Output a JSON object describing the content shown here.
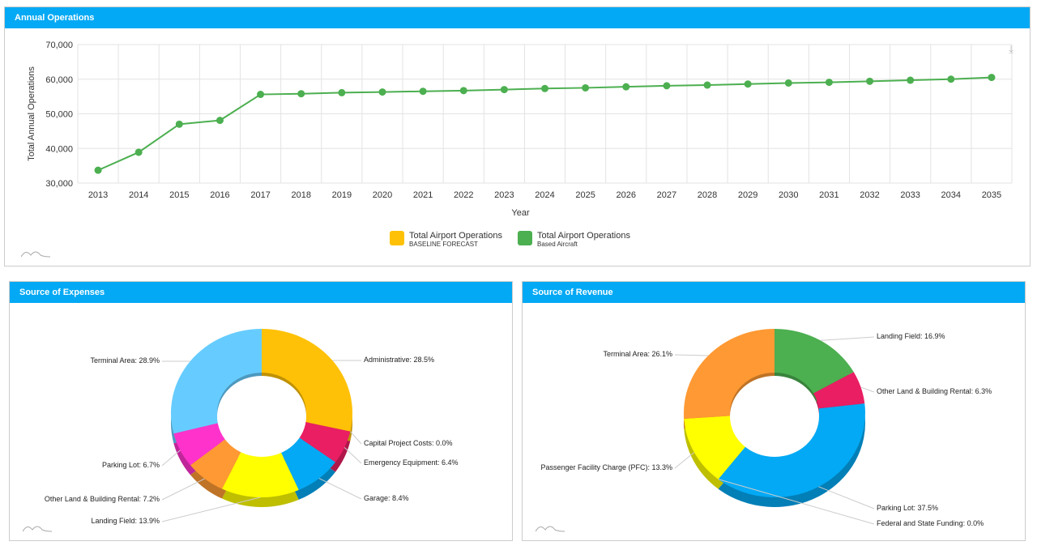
{
  "panels": {
    "operations": "Annual Operations",
    "expenses": "Source of Expenses",
    "revenue": "Source of Revenue"
  },
  "chart_data": [
    {
      "type": "line",
      "title": "Annual Operations",
      "xlabel": "Year",
      "ylabel": "Total Annual Operations",
      "ylim": [
        30000,
        70000
      ],
      "yticks": [
        "30,000",
        "40,000",
        "50,000",
        "60,000",
        "70,000"
      ],
      "x": [
        "2013",
        "2014",
        "2015",
        "2016",
        "2017",
        "2018",
        "2019",
        "2020",
        "2021",
        "2022",
        "2023",
        "2024",
        "2025",
        "2026",
        "2027",
        "2028",
        "2029",
        "2030",
        "2031",
        "2032",
        "2033",
        "2034",
        "2035"
      ],
      "series": [
        {
          "name": "Total Airport Operations",
          "subtitle": "Based Aircraft",
          "color": "#4caf50",
          "values": [
            33700,
            38900,
            47000,
            48100,
            55600,
            55800,
            56100,
            56300,
            56500,
            56700,
            57000,
            57300,
            57500,
            57800,
            58100,
            58300,
            58600,
            58900,
            59100,
            59400,
            59700,
            60000,
            60500
          ]
        }
      ],
      "legend": [
        {
          "name": "Total Airport Operations",
          "sub": "BASELINE FORECAST",
          "color": "#ffc107"
        },
        {
          "name": "Total Airport Operations",
          "sub": "Based Aircraft",
          "color": "#4caf50"
        }
      ],
      "grid": true
    },
    {
      "type": "pie",
      "title": "Source of Expenses",
      "slices": [
        {
          "label": "Administrative: 28.5%",
          "name": "Administrative",
          "value": 28.5,
          "color": "#ffc107"
        },
        {
          "label": "Capital Project Costs: 0.0%",
          "name": "Capital Project Costs",
          "value": 0.0,
          "color": "#9c27b0"
        },
        {
          "label": "Emergency Equipment: 6.4%",
          "name": "Emergency Equipment",
          "value": 6.4,
          "color": "#e91e63"
        },
        {
          "label": "Garage: 8.4%",
          "name": "Garage",
          "value": 8.4,
          "color": "#03a9f4"
        },
        {
          "label": "Landing Field: 13.9%",
          "name": "Landing Field",
          "value": 13.9,
          "color": "#ffff00"
        },
        {
          "label": "Other Land & Building Rental: 7.2%",
          "name": "Other Land & Building Rental",
          "value": 7.2,
          "color": "#ff9933"
        },
        {
          "label": "Parking Lot: 6.7%",
          "name": "Parking Lot",
          "value": 6.7,
          "color": "#ff33cc"
        },
        {
          "label": "Terminal Area: 28.9%",
          "name": "Terminal Area",
          "value": 28.9,
          "color": "#66ccff"
        }
      ]
    },
    {
      "type": "pie",
      "title": "Source of Revenue",
      "slices": [
        {
          "label": "Landing Field: 16.9%",
          "name": "Landing Field",
          "value": 16.9,
          "color": "#4caf50"
        },
        {
          "label": "Other Land & Building Rental: 6.3%",
          "name": "Other Land & Building Rental",
          "value": 6.3,
          "color": "#e91e63"
        },
        {
          "label": "Parking Lot: 37.5%",
          "name": "Parking Lot",
          "value": 37.5,
          "color": "#03a9f4"
        },
        {
          "label": "Federal and State Funding: 0.0%",
          "name": "Federal and State Funding",
          "value": 0.0,
          "color": "#9c27b0"
        },
        {
          "label": "Passenger Facility Charge (PFC): 13.3%",
          "name": "Passenger Facility Charge (PFC)",
          "value": 13.3,
          "color": "#ffff00"
        },
        {
          "label": "Terminal Area: 26.1%",
          "name": "Terminal Area",
          "value": 26.1,
          "color": "#ff9933"
        }
      ]
    }
  ]
}
